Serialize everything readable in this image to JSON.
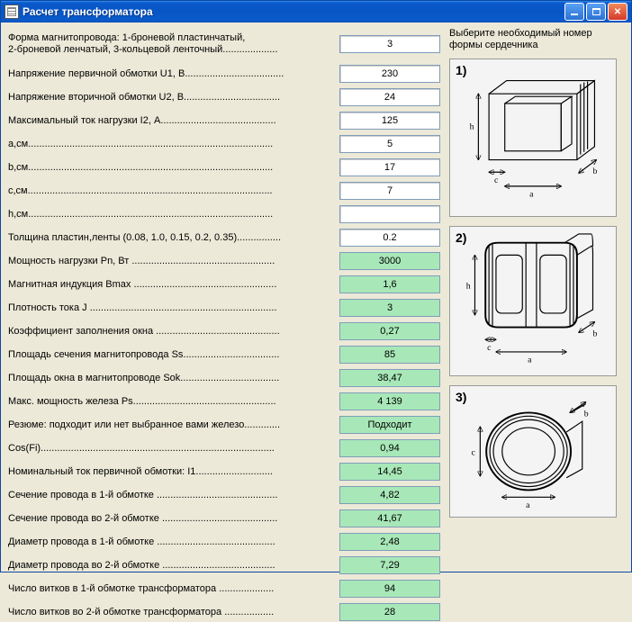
{
  "window": {
    "title": "Расчет трансформатора"
  },
  "right_header": "Выберите необходимый номер формы сердечника",
  "diagrams": [
    {
      "label": "1)",
      "dims": [
        "h",
        "c",
        "a",
        "b"
      ]
    },
    {
      "label": "2)",
      "dims": [
        "h",
        "c",
        "a",
        "b"
      ]
    },
    {
      "label": "3)",
      "dims": [
        "c",
        "a",
        "b"
      ]
    }
  ],
  "params": [
    {
      "label": "Форма магнитопровода: 1-броневой пластинчатый,\n2-броневой ленчатый, 3-кольцевой ленточный....................",
      "value": "3",
      "type": "input",
      "multi": true
    },
    {
      "label": "Напряжение первичной обмотки U1, В....................................",
      "value": "230",
      "type": "input"
    },
    {
      "label": "Напряжение вторичной обмотки U2, В...................................",
      "value": "24",
      "type": "input"
    },
    {
      "label": "Максимальный ток нагрузки I2, А..........................................",
      "value": "125",
      "type": "input"
    },
    {
      "label": "a,см.........................................................................................",
      "value": "5",
      "type": "input"
    },
    {
      "label": "b,см.........................................................................................",
      "value": "17",
      "type": "input"
    },
    {
      "label": "c,см.........................................................................................",
      "value": "7",
      "type": "input"
    },
    {
      "label": "h,см.........................................................................................",
      "value": "",
      "type": "input"
    },
    {
      "label": "Толщина пластин,ленты (0.08, 1.0, 0.15, 0.2, 0.35)................",
      "value": "0.2",
      "type": "input"
    },
    {
      "label": "Мощность нагрузки Pn, Вт ....................................................",
      "value": "3000",
      "type": "output"
    },
    {
      "label": "Магнитная индукция Bmax ....................................................",
      "value": "1,6",
      "type": "output"
    },
    {
      "label": "Плотность тока J ....................................................................",
      "value": "3",
      "type": "output"
    },
    {
      "label": "Коэффициент заполнения окна .............................................",
      "value": "0,27",
      "type": "output"
    },
    {
      "label": "Площадь сечения магнитопровода Ss...................................",
      "value": "85",
      "type": "output"
    },
    {
      "label": "Площадь окна в магнитопроводе Sok....................................",
      "value": "38,47",
      "type": "output"
    },
    {
      "label": "Макс. мощность железа Ps....................................................",
      "value": "4 139",
      "type": "output"
    },
    {
      "label": "Резюме: подходит или нет выбранное вами железо.............",
      "value": "Подходит",
      "type": "output"
    },
    {
      "label": "Cos(Fi).....................................................................................",
      "value": "0,94",
      "type": "output"
    },
    {
      "label": "Номинальный ток первичной обмотки: I1............................",
      "value": "14,45",
      "type": "output"
    },
    {
      "label": "Сечение провода в 1-й обмотке ............................................",
      "value": "4,82",
      "type": "output"
    },
    {
      "label": "Сечение провода во 2-й обмотке ..........................................",
      "value": "41,67",
      "type": "output"
    },
    {
      "label": "Диаметр провода в 1-й обмотке ...........................................",
      "value": "2,48",
      "type": "output"
    },
    {
      "label": "Диаметр провода во 2-й обмотке .........................................",
      "value": "7,29",
      "type": "output"
    },
    {
      "label": "Число витков в 1-й обмотке трансформатора ....................",
      "value": "94",
      "type": "output"
    },
    {
      "label": "Число витков во 2-й обмотке трансформатора ..................",
      "value": "28",
      "type": "output"
    }
  ],
  "colors": {
    "titlebar_top": "#3b8df2",
    "titlebar_mid": "#0a5acb",
    "form_bg": "#ece9d8",
    "input_bg": "#ffffff",
    "output_bg": "#a8e8b8",
    "field_border": "#7f9db9"
  }
}
